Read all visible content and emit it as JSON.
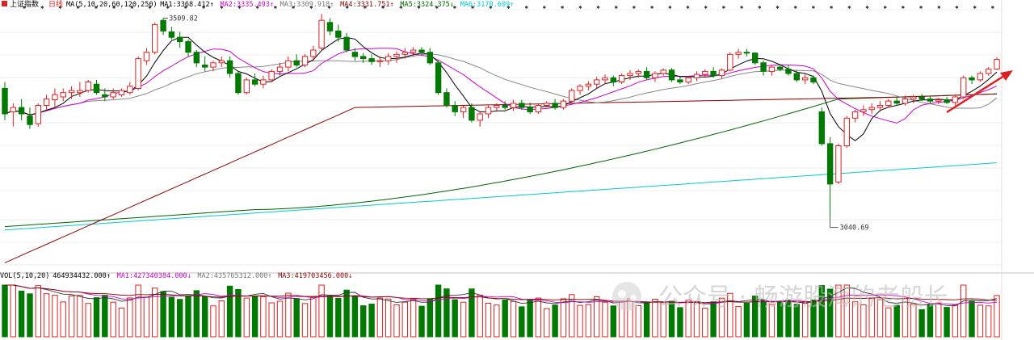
{
  "header": {
    "index_name": "上证指数",
    "period": "日线",
    "ma_params": "MA(5,10,20,60,120,250)",
    "ma_items": [
      {
        "label": "MA1:",
        "value": "3368.412",
        "arrow": "↑",
        "color": "#000000"
      },
      {
        "label": "MA2:",
        "value": "3335.493",
        "arrow": "↑",
        "color": "#cc00cc"
      },
      {
        "label": "MA3:",
        "value": "3309.918",
        "arrow": "↑",
        "color": "#777777"
      },
      {
        "label": "MA4:",
        "value": "3331.751",
        "arrow": "↑",
        "color": "#8b0000"
      },
      {
        "label": "MA5:",
        "value": "3324.375",
        "arrow": "↓",
        "color": "#006400"
      },
      {
        "label": "MA6:",
        "value": "3170.609",
        "arrow": "↑",
        "color": "#00cccc"
      }
    ]
  },
  "volume_header": {
    "params": "VOL(5,10,20)",
    "items": [
      {
        "label": "",
        "value": "464934432.000",
        "arrow": "↑",
        "color": "#000000"
      },
      {
        "label": "MA1:",
        "value": "427340384.000",
        "arrow": "↓",
        "color": "#cc00cc"
      },
      {
        "label": "MA2:",
        "value": "435765312.000",
        "arrow": "↑",
        "color": "#777777"
      },
      {
        "label": "MA3:",
        "value": "419703456.000",
        "arrow": "↓",
        "color": "#8b0000"
      }
    ]
  },
  "watermark": {
    "text": "公众号 · 畅游股海的老船长"
  },
  "colors": {
    "up": "#e02020",
    "down": "#007a00",
    "grid": "#dddddd",
    "ma5": "#000000",
    "ma10": "#cc00cc",
    "ma20": "#888888",
    "ma60": "#8b0000",
    "ma120": "#006400",
    "ma250": "#00cccc",
    "arrow": "#e02020"
  },
  "chart_data": {
    "type": "candlestick",
    "y_range": [
      2930,
      3530
    ],
    "annotations": [
      {
        "label": "3509.82",
        "value": 3509.82,
        "kind": "high"
      },
      {
        "label": "3040.69",
        "value": 3040.69,
        "kind": "low"
      }
    ],
    "candles": [
      {
        "o": 3345,
        "h": 3360,
        "l": 3270,
        "c": 3285
      },
      {
        "o": 3290,
        "h": 3310,
        "l": 3255,
        "c": 3300
      },
      {
        "o": 3300,
        "h": 3320,
        "l": 3270,
        "c": 3285
      },
      {
        "o": 3280,
        "h": 3300,
        "l": 3250,
        "c": 3260
      },
      {
        "o": 3262,
        "h": 3310,
        "l": 3255,
        "c": 3305
      },
      {
        "o": 3305,
        "h": 3330,
        "l": 3295,
        "c": 3320
      },
      {
        "o": 3318,
        "h": 3345,
        "l": 3300,
        "c": 3330
      },
      {
        "o": 3325,
        "h": 3345,
        "l": 3315,
        "c": 3335
      },
      {
        "o": 3335,
        "h": 3350,
        "l": 3320,
        "c": 3340
      },
      {
        "o": 3335,
        "h": 3360,
        "l": 3325,
        "c": 3340
      },
      {
        "o": 3340,
        "h": 3365,
        "l": 3335,
        "c": 3360
      },
      {
        "o": 3355,
        "h": 3365,
        "l": 3330,
        "c": 3335
      },
      {
        "o": 3330,
        "h": 3345,
        "l": 3315,
        "c": 3325
      },
      {
        "o": 3325,
        "h": 3345,
        "l": 3320,
        "c": 3335
      },
      {
        "o": 3330,
        "h": 3345,
        "l": 3325,
        "c": 3340
      },
      {
        "o": 3335,
        "h": 3360,
        "l": 3330,
        "c": 3350
      },
      {
        "o": 3345,
        "h": 3420,
        "l": 3340,
        "c": 3415
      },
      {
        "o": 3410,
        "h": 3440,
        "l": 3400,
        "c": 3430
      },
      {
        "o": 3430,
        "h": 3500,
        "l": 3425,
        "c": 3495
      },
      {
        "o": 3505,
        "h": 3510,
        "l": 3470,
        "c": 3480
      },
      {
        "o": 3478,
        "h": 3490,
        "l": 3460,
        "c": 3465
      },
      {
        "o": 3465,
        "h": 3478,
        "l": 3440,
        "c": 3455
      },
      {
        "o": 3455,
        "h": 3460,
        "l": 3420,
        "c": 3430
      },
      {
        "o": 3430,
        "h": 3435,
        "l": 3395,
        "c": 3405
      },
      {
        "o": 3400,
        "h": 3420,
        "l": 3385,
        "c": 3395
      },
      {
        "o": 3395,
        "h": 3410,
        "l": 3385,
        "c": 3405
      },
      {
        "o": 3405,
        "h": 3420,
        "l": 3395,
        "c": 3410
      },
      {
        "o": 3410,
        "h": 3420,
        "l": 3370,
        "c": 3380
      },
      {
        "o": 3380,
        "h": 3385,
        "l": 3330,
        "c": 3335
      },
      {
        "o": 3335,
        "h": 3370,
        "l": 3330,
        "c": 3365
      },
      {
        "o": 3365,
        "h": 3380,
        "l": 3350,
        "c": 3355
      },
      {
        "o": 3355,
        "h": 3375,
        "l": 3345,
        "c": 3365
      },
      {
        "o": 3365,
        "h": 3390,
        "l": 3360,
        "c": 3385
      },
      {
        "o": 3385,
        "h": 3405,
        "l": 3375,
        "c": 3395
      },
      {
        "o": 3395,
        "h": 3420,
        "l": 3385,
        "c": 3410
      },
      {
        "o": 3410,
        "h": 3425,
        "l": 3395,
        "c": 3400
      },
      {
        "o": 3400,
        "h": 3425,
        "l": 3395,
        "c": 3420
      },
      {
        "o": 3420,
        "h": 3445,
        "l": 3410,
        "c": 3435
      },
      {
        "o": 3440,
        "h": 3520,
        "l": 3435,
        "c": 3505
      },
      {
        "o": 3500,
        "h": 3510,
        "l": 3470,
        "c": 3480
      },
      {
        "o": 3480,
        "h": 3495,
        "l": 3455,
        "c": 3465
      },
      {
        "o": 3465,
        "h": 3475,
        "l": 3430,
        "c": 3435
      },
      {
        "o": 3430,
        "h": 3440,
        "l": 3410,
        "c": 3420
      },
      {
        "o": 3420,
        "h": 3428,
        "l": 3405,
        "c": 3415
      },
      {
        "o": 3415,
        "h": 3425,
        "l": 3400,
        "c": 3408
      },
      {
        "o": 3408,
        "h": 3420,
        "l": 3395,
        "c": 3410
      },
      {
        "o": 3410,
        "h": 3428,
        "l": 3400,
        "c": 3420
      },
      {
        "o": 3420,
        "h": 3432,
        "l": 3405,
        "c": 3425
      },
      {
        "o": 3425,
        "h": 3440,
        "l": 3415,
        "c": 3430
      },
      {
        "o": 3430,
        "h": 3442,
        "l": 3420,
        "c": 3435
      },
      {
        "o": 3435,
        "h": 3442,
        "l": 3425,
        "c": 3430
      },
      {
        "o": 3430,
        "h": 3440,
        "l": 3400,
        "c": 3405
      },
      {
        "o": 3405,
        "h": 3410,
        "l": 3330,
        "c": 3335
      },
      {
        "o": 3335,
        "h": 3345,
        "l": 3300,
        "c": 3305
      },
      {
        "o": 3305,
        "h": 3315,
        "l": 3280,
        "c": 3290
      },
      {
        "o": 3290,
        "h": 3305,
        "l": 3275,
        "c": 3300
      },
      {
        "o": 3300,
        "h": 3310,
        "l": 3265,
        "c": 3270
      },
      {
        "o": 3270,
        "h": 3290,
        "l": 3255,
        "c": 3285
      },
      {
        "o": 3285,
        "h": 3305,
        "l": 3275,
        "c": 3300
      },
      {
        "o": 3300,
        "h": 3310,
        "l": 3290,
        "c": 3305
      },
      {
        "o": 3305,
        "h": 3315,
        "l": 3295,
        "c": 3300
      },
      {
        "o": 3300,
        "h": 3318,
        "l": 3292,
        "c": 3310
      },
      {
        "o": 3310,
        "h": 3318,
        "l": 3295,
        "c": 3300
      },
      {
        "o": 3300,
        "h": 3312,
        "l": 3285,
        "c": 3290
      },
      {
        "o": 3290,
        "h": 3310,
        "l": 3285,
        "c": 3305
      },
      {
        "o": 3305,
        "h": 3315,
        "l": 3300,
        "c": 3310
      },
      {
        "o": 3310,
        "h": 3320,
        "l": 3295,
        "c": 3300
      },
      {
        "o": 3300,
        "h": 3320,
        "l": 3295,
        "c": 3315
      },
      {
        "o": 3315,
        "h": 3345,
        "l": 3310,
        "c": 3340
      },
      {
        "o": 3340,
        "h": 3355,
        "l": 3330,
        "c": 3350
      },
      {
        "o": 3350,
        "h": 3362,
        "l": 3340,
        "c": 3355
      },
      {
        "o": 3355,
        "h": 3372,
        "l": 3345,
        "c": 3365
      },
      {
        "o": 3365,
        "h": 3378,
        "l": 3355,
        "c": 3370
      },
      {
        "o": 3370,
        "h": 3375,
        "l": 3350,
        "c": 3360
      },
      {
        "o": 3360,
        "h": 3380,
        "l": 3355,
        "c": 3375
      },
      {
        "o": 3375,
        "h": 3388,
        "l": 3365,
        "c": 3380
      },
      {
        "o": 3380,
        "h": 3390,
        "l": 3370,
        "c": 3385
      },
      {
        "o": 3385,
        "h": 3395,
        "l": 3365,
        "c": 3370
      },
      {
        "o": 3370,
        "h": 3385,
        "l": 3360,
        "c": 3380
      },
      {
        "o": 3380,
        "h": 3392,
        "l": 3375,
        "c": 3388
      },
      {
        "o": 3388,
        "h": 3393,
        "l": 3360,
        "c": 3365
      },
      {
        "o": 3365,
        "h": 3372,
        "l": 3355,
        "c": 3360
      },
      {
        "o": 3360,
        "h": 3375,
        "l": 3355,
        "c": 3370
      },
      {
        "o": 3370,
        "h": 3385,
        "l": 3362,
        "c": 3378
      },
      {
        "o": 3378,
        "h": 3390,
        "l": 3370,
        "c": 3385
      },
      {
        "o": 3385,
        "h": 3395,
        "l": 3370,
        "c": 3375
      },
      {
        "o": 3375,
        "h": 3392,
        "l": 3368,
        "c": 3388
      },
      {
        "o": 3388,
        "h": 3430,
        "l": 3385,
        "c": 3425
      },
      {
        "o": 3425,
        "h": 3438,
        "l": 3415,
        "c": 3430
      },
      {
        "o": 3430,
        "h": 3438,
        "l": 3420,
        "c": 3428
      },
      {
        "o": 3428,
        "h": 3430,
        "l": 3400,
        "c": 3405
      },
      {
        "o": 3405,
        "h": 3410,
        "l": 3375,
        "c": 3385
      },
      {
        "o": 3385,
        "h": 3400,
        "l": 3375,
        "c": 3395
      },
      {
        "o": 3395,
        "h": 3402,
        "l": 3385,
        "c": 3390
      },
      {
        "o": 3390,
        "h": 3400,
        "l": 3375,
        "c": 3380
      },
      {
        "o": 3380,
        "h": 3388,
        "l": 3360,
        "c": 3365
      },
      {
        "o": 3365,
        "h": 3378,
        "l": 3355,
        "c": 3370
      },
      {
        "o": 3370,
        "h": 3375,
        "l": 3355,
        "c": 3360
      },
      {
        "o": 3290,
        "h": 3300,
        "l": 3210,
        "c": 3215
      },
      {
        "o": 3215,
        "h": 3230,
        "l": 3040,
        "c": 3120
      },
      {
        "o": 3125,
        "h": 3215,
        "l": 3120,
        "c": 3210
      },
      {
        "o": 3210,
        "h": 3280,
        "l": 3205,
        "c": 3275
      },
      {
        "o": 3275,
        "h": 3295,
        "l": 3265,
        "c": 3290
      },
      {
        "o": 3290,
        "h": 3305,
        "l": 3280,
        "c": 3295
      },
      {
        "o": 3295,
        "h": 3310,
        "l": 3285,
        "c": 3300
      },
      {
        "o": 3300,
        "h": 3315,
        "l": 3290,
        "c": 3305
      },
      {
        "o": 3305,
        "h": 3320,
        "l": 3300,
        "c": 3315
      },
      {
        "o": 3315,
        "h": 3325,
        "l": 3305,
        "c": 3310
      },
      {
        "o": 3310,
        "h": 3328,
        "l": 3305,
        "c": 3320
      },
      {
        "o": 3320,
        "h": 3330,
        "l": 3310,
        "c": 3325
      },
      {
        "o": 3325,
        "h": 3332,
        "l": 3315,
        "c": 3320
      },
      {
        "o": 3320,
        "h": 3328,
        "l": 3310,
        "c": 3315
      },
      {
        "o": 3315,
        "h": 3322,
        "l": 3308,
        "c": 3318
      },
      {
        "o": 3318,
        "h": 3325,
        "l": 3308,
        "c": 3312
      },
      {
        "o": 3312,
        "h": 3330,
        "l": 3305,
        "c": 3325
      },
      {
        "o": 3325,
        "h": 3375,
        "l": 3320,
        "c": 3370
      },
      {
        "o": 3370,
        "h": 3375,
        "l": 3355,
        "c": 3365
      },
      {
        "o": 3365,
        "h": 3385,
        "l": 3360,
        "c": 3380
      },
      {
        "o": 3380,
        "h": 3395,
        "l": 3375,
        "c": 3390
      },
      {
        "o": 3390,
        "h": 3418,
        "l": 3388,
        "c": 3413
      }
    ],
    "volume_ma_series_count": 3
  }
}
